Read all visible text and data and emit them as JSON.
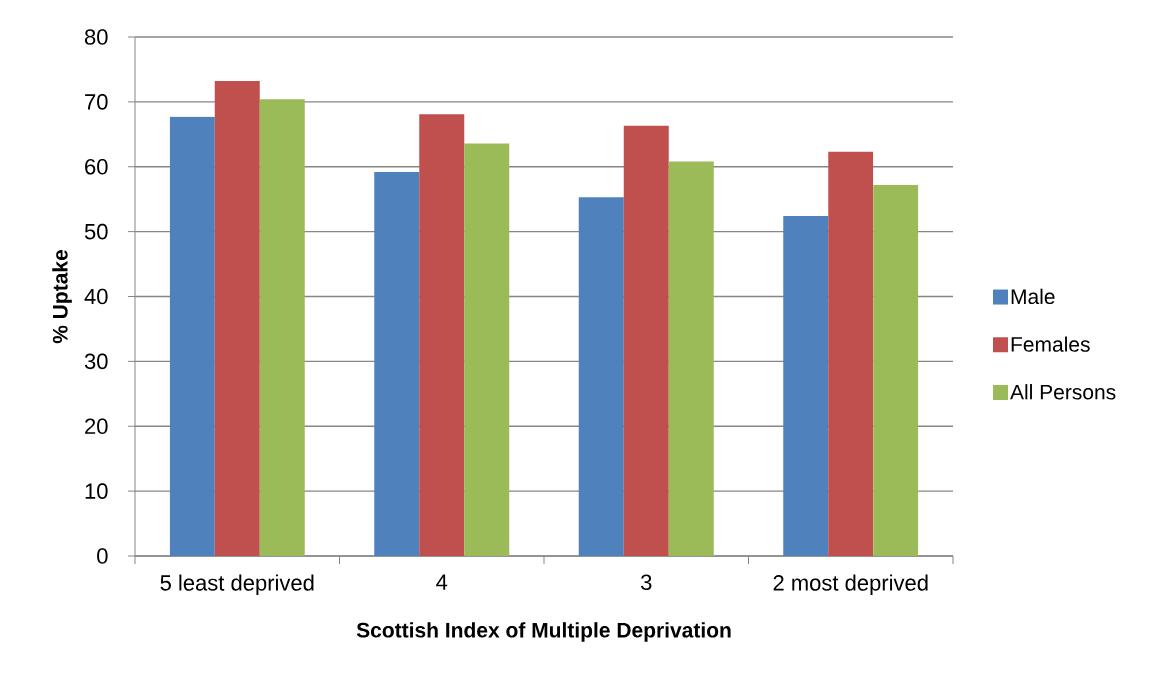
{
  "chart_data": {
    "type": "bar",
    "xlabel": "Scottish Index of Multiple Deprivation",
    "ylabel": "% Uptake",
    "categories": [
      "5 least deprived",
      "4",
      "3",
      "2 most deprived"
    ],
    "series": [
      {
        "name": "Male",
        "color": "#4f81bd",
        "values": [
          67.7,
          59.2,
          55.3,
          52.4
        ]
      },
      {
        "name": "Females",
        "color": "#c0504d",
        "values": [
          73.2,
          68.1,
          66.3,
          62.3
        ]
      },
      {
        "name": "All Persons",
        "color": "#9bbb59",
        "values": [
          70.4,
          63.6,
          60.8,
          57.2
        ]
      }
    ],
    "ylim": [
      0,
      80
    ],
    "yticks": [
      0,
      10,
      20,
      30,
      40,
      50,
      60,
      70,
      80
    ],
    "grid": "y",
    "legend": "right"
  }
}
